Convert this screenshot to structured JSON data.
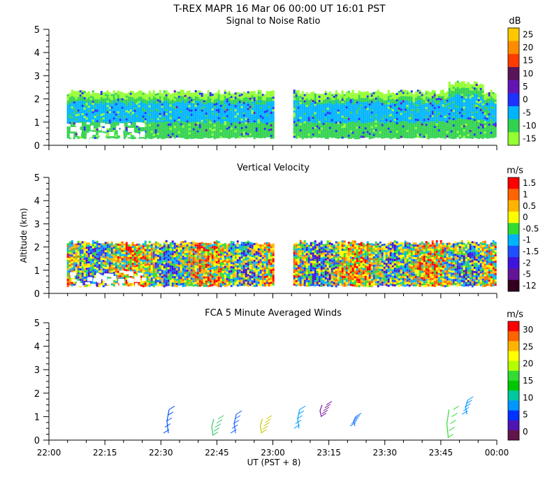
{
  "figure_title": "T-REX   MAPR 16 Mar 06   00:00 UT   16:01   PST",
  "chart_data": [
    {
      "type": "heatmap",
      "title": "Signal to Noise Ratio",
      "ylabel": "",
      "ylim": [
        0,
        5
      ],
      "y_ticks": [
        "0",
        "1",
        "2",
        "3",
        "4",
        "5"
      ],
      "colorbar_unit": "dB",
      "colorbar_levels": [
        "25",
        "20",
        "15",
        "10",
        "5",
        "0",
        "-5",
        "-10",
        "-15"
      ],
      "colorbar_colors": [
        "#ffc800",
        "#ff8c00",
        "#ff3c00",
        "#5a145a",
        "#6414b4",
        "#1e32ff",
        "#00b4ff",
        "#32d250",
        "#96ff32"
      ],
      "data_gap_utc": [
        "23:00",
        "23:05"
      ],
      "layer_top_km": 2.3
    },
    {
      "type": "heatmap",
      "title": "Vertical Velocity",
      "ylabel": "Altitude (km)",
      "ylim": [
        0,
        5
      ],
      "y_ticks": [
        "0",
        "1",
        "2",
        "3",
        "4",
        "5"
      ],
      "colorbar_unit": "m/s",
      "colorbar_levels": [
        "1.5",
        "1",
        "0.5",
        "0",
        "-0.5",
        "-1",
        "-1.5",
        "-2",
        "-5",
        "-12"
      ],
      "colorbar_colors": [
        "#ff0000",
        "#ff6400",
        "#ffb400",
        "#ffff00",
        "#32dc32",
        "#00b4ff",
        "#1e50ff",
        "#3c14dc",
        "#641496",
        "#32001e"
      ],
      "data_gap_utc": [
        "23:00",
        "23:05"
      ],
      "layer_top_km": 2.2
    },
    {
      "type": "scatter",
      "title": "FCA 5 Minute Averaged Winds",
      "ylabel": "",
      "ylim": [
        0,
        5
      ],
      "y_ticks": [
        "0",
        "1",
        "2",
        "3",
        "4",
        "5"
      ],
      "colorbar_unit": "m/s",
      "colorbar_levels": [
        "30",
        "25",
        "20",
        "15",
        "10",
        "5",
        "0"
      ],
      "colorbar_colors": [
        "#ff0000",
        "#ff6400",
        "#ffb400",
        "#ffff00",
        "#b4ff00",
        "#32dc32",
        "#00c800",
        "#00c8a0",
        "#0096ff",
        "#0032ff",
        "#5014b4",
        "#64144b"
      ],
      "wind_profiles": [
        {
          "time": "22:32",
          "alt_range": [
            0.3,
            1.3
          ],
          "color": "#0050ff"
        },
        {
          "time": "22:44",
          "alt_range": [
            0.2,
            0.9
          ],
          "color": "#32c864"
        },
        {
          "time": "22:50",
          "alt_range": [
            0.3,
            1.1
          ],
          "color": "#1e64ff"
        },
        {
          "time": "22:57",
          "alt_range": [
            0.3,
            0.9
          ],
          "color": "#c8c800"
        },
        {
          "time": "23:07",
          "alt_range": [
            0.5,
            1.3
          ],
          "color": "#00a0ff"
        },
        {
          "time": "23:13",
          "alt_range": [
            1.0,
            1.5
          ],
          "color": "#7814a0"
        },
        {
          "time": "23:22",
          "alt_range": [
            0.6,
            1.0
          ],
          "color": "#1e78ff"
        },
        {
          "time": "23:47",
          "alt_range": [
            0.1,
            1.3
          ],
          "color": "#32dc32"
        },
        {
          "time": "23:52",
          "alt_range": [
            1.1,
            1.7
          ],
          "color": "#0096ff"
        }
      ]
    }
  ],
  "x_axis": {
    "tick_labels": [
      "22:00",
      "22:15",
      "22:30",
      "22:45",
      "23:00",
      "23:15",
      "23:30",
      "23:45",
      "00:00"
    ],
    "label": "UT  (PST + 8)"
  }
}
